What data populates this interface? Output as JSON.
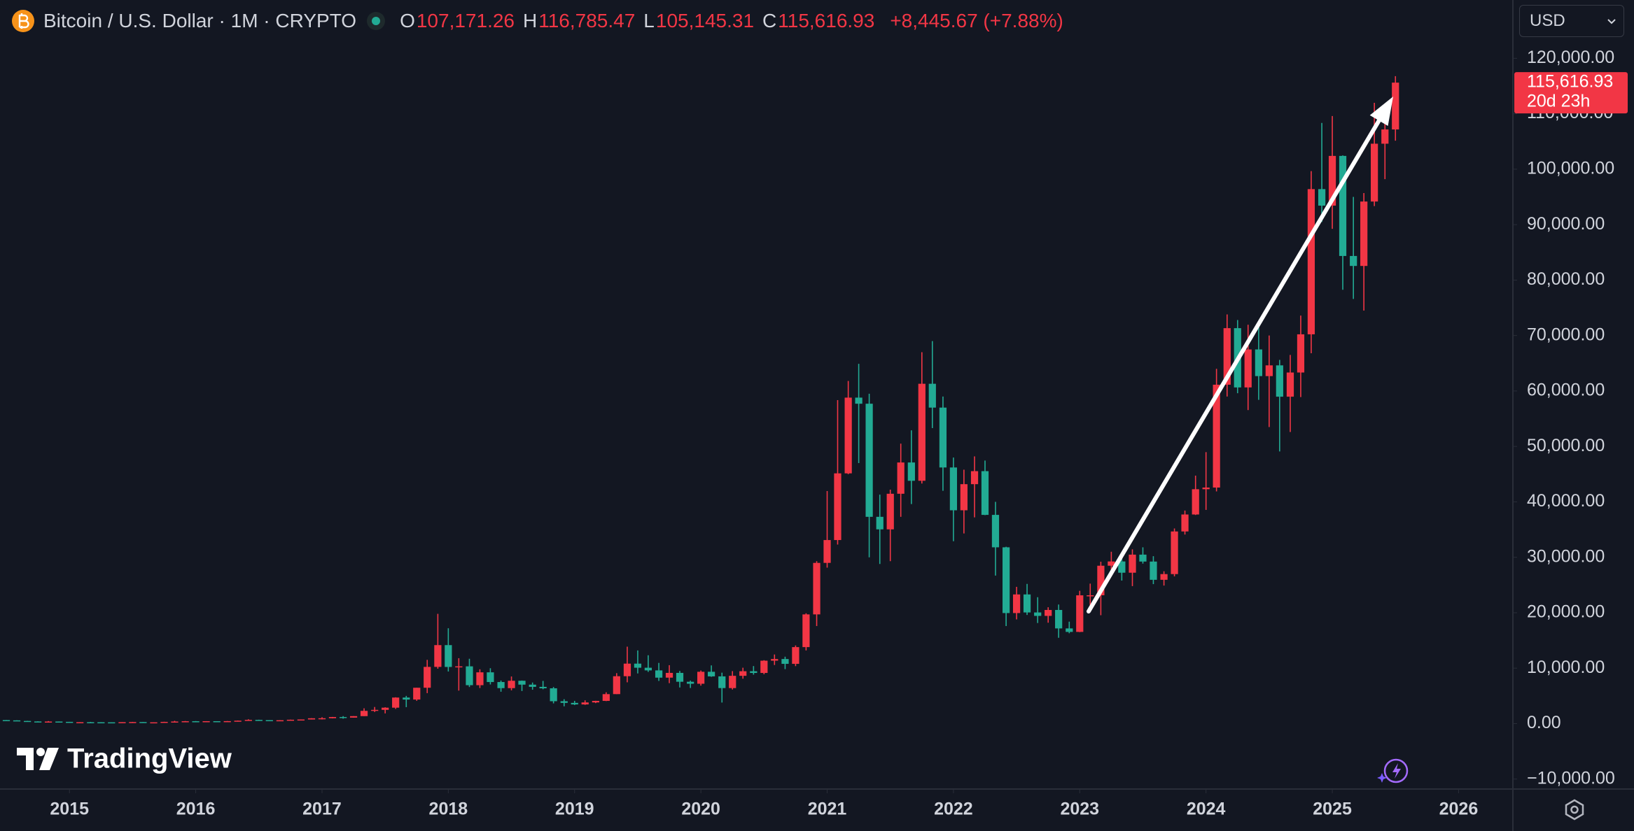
{
  "header": {
    "symbol": "Bitcoin / U.S. Dollar · 1M · CRYPTO",
    "ohlc": [
      {
        "label": "O",
        "value": "107,171.26"
      },
      {
        "label": "H",
        "value": "116,785.47"
      },
      {
        "label": "L",
        "value": "105,145.31"
      },
      {
        "label": "C",
        "value": "115,616.93"
      }
    ],
    "change": "+8,445.67 (+7.88%)"
  },
  "price_scale": {
    "currency": "USD",
    "last_price": "115,616.93",
    "countdown": "20d 23h"
  },
  "brand": "TradingView",
  "chart_data": {
    "type": "candlestick",
    "colors": {
      "up": "#f23645",
      "down": "#22ab94"
    },
    "xlim": [
      2014.45,
      2026.43
    ],
    "xticks": [
      2015,
      2016,
      2017,
      2018,
      2019,
      2020,
      2021,
      2022,
      2023,
      2024,
      2025,
      2026
    ],
    "ylim": [
      -11800,
      130520
    ],
    "yticks": [
      {
        "value": -10000,
        "label": "−10,000.00"
      },
      {
        "value": 0,
        "label": "0.00"
      },
      {
        "value": 10000,
        "label": "10,000.00"
      },
      {
        "value": 20000,
        "label": "20,000.00"
      },
      {
        "value": 30000,
        "label": "30,000.00"
      },
      {
        "value": 40000,
        "label": "40,000.00"
      },
      {
        "value": 50000,
        "label": "50,000.00"
      },
      {
        "value": 60000,
        "label": "60,000.00"
      },
      {
        "value": 70000,
        "label": "70,000.00"
      },
      {
        "value": 80000,
        "label": "80,000.00"
      },
      {
        "value": 90000,
        "label": "90,000.00"
      },
      {
        "value": 100000,
        "label": "100,000.00"
      },
      {
        "value": 110000,
        "label": "110,000.00"
      },
      {
        "value": 120000,
        "label": "120,000.00"
      }
    ],
    "x": [
      2014.5,
      2014.583,
      2014.667,
      2014.75,
      2014.833,
      2014.917,
      2015,
      2015.083,
      2015.167,
      2015.25,
      2015.333,
      2015.417,
      2015.5,
      2015.583,
      2015.667,
      2015.75,
      2015.833,
      2015.917,
      2016,
      2016.083,
      2016.167,
      2016.25,
      2016.333,
      2016.417,
      2016.5,
      2016.583,
      2016.667,
      2016.75,
      2016.833,
      2016.917,
      2017,
      2017.083,
      2017.167,
      2017.25,
      2017.333,
      2017.417,
      2017.5,
      2017.583,
      2017.667,
      2017.75,
      2017.833,
      2017.917,
      2018,
      2018.083,
      2018.167,
      2018.25,
      2018.333,
      2018.417,
      2018.5,
      2018.583,
      2018.667,
      2018.75,
      2018.833,
      2018.917,
      2019,
      2019.083,
      2019.167,
      2019.25,
      2019.333,
      2019.417,
      2019.5,
      2019.583,
      2019.667,
      2019.75,
      2019.833,
      2019.917,
      2020,
      2020.083,
      2020.167,
      2020.25,
      2020.333,
      2020.417,
      2020.5,
      2020.583,
      2020.667,
      2020.75,
      2020.833,
      2020.917,
      2021,
      2021.083,
      2021.167,
      2021.25,
      2021.333,
      2021.417,
      2021.5,
      2021.583,
      2021.667,
      2021.75,
      2021.833,
      2021.917,
      2022,
      2022.083,
      2022.167,
      2022.25,
      2022.333,
      2022.417,
      2022.5,
      2022.583,
      2022.667,
      2022.75,
      2022.833,
      2022.917,
      2023,
      2023.083,
      2023.167,
      2023.25,
      2023.333,
      2023.417,
      2023.5,
      2023.583,
      2023.667,
      2023.75,
      2023.833,
      2023.917,
      2024,
      2024.083,
      2024.167,
      2024.25,
      2024.333,
      2024.417,
      2024.5,
      2024.583,
      2024.667,
      2024.75,
      2024.833,
      2024.917,
      2025,
      2025.083,
      2025.167,
      2025.25,
      2025.333,
      2025.417,
      2025.5
    ],
    "open": [
      635,
      585,
      480,
      390,
      340,
      375,
      320,
      220,
      255,
      245,
      235,
      230,
      263,
      285,
      230,
      236,
      314,
      377,
      430,
      368,
      437,
      416,
      448,
      530,
      673,
      624,
      574,
      609,
      701,
      746,
      964,
      970,
      1190,
      1080,
      1350,
      2300,
      2480,
      2875,
      4700,
      4340,
      6470,
      10230,
      14160,
      10220,
      10330,
      6930,
      9250,
      7500,
      6400,
      7730,
      7030,
      6630,
      6370,
      4040,
      3740,
      3460,
      3820,
      4100,
      5320,
      8550,
      10820,
      10080,
      9600,
      8290,
      9150,
      7550,
      7190,
      9350,
      8520,
      6410,
      8620,
      9450,
      9140,
      11350,
      11650,
      10780,
      13800,
      19700,
      28990,
      33110,
      45140,
      58800,
      57700,
      37300,
      35040,
      41460,
      47100,
      43800,
      61300,
      57000,
      46200,
      38480,
      43190,
      45540,
      37650,
      31800,
      19940,
      23300,
      20050,
      19430,
      20500,
      17170,
      16540,
      23140,
      23150,
      28480,
      29250,
      27220,
      30480,
      29230,
      25940,
      26970,
      34660,
      37720,
      42280,
      42580,
      61130,
      71330,
      60640,
      67490,
      62680,
      64620,
      58970,
      63330,
      70220,
      96410,
      93430,
      102400,
      84350,
      82550,
      94170,
      104600,
      107171.26
    ],
    "high": [
      650,
      600,
      500,
      420,
      460,
      390,
      320,
      265,
      300,
      260,
      245,
      265,
      315,
      285,
      245,
      335,
      500,
      470,
      460,
      445,
      440,
      470,
      550,
      780,
      705,
      630,
      630,
      720,
      755,
      980,
      1150,
      1210,
      1350,
      1350,
      2760,
      3000,
      2950,
      4750,
      5000,
      6470,
      11500,
      19800,
      17200,
      11800,
      11700,
      9800,
      9990,
      7770,
      8500,
      7770,
      7410,
      7700,
      6600,
      4400,
      4100,
      4200,
      4120,
      5650,
      9100,
      13880,
      13200,
      12330,
      10950,
      10540,
      9500,
      7750,
      9580,
      10500,
      9190,
      9470,
      10080,
      10380,
      11440,
      12470,
      12070,
      14100,
      19900,
      29300,
      41950,
      58350,
      61800,
      64900,
      59500,
      41300,
      42200,
      50500,
      52900,
      67000,
      69000,
      59000,
      47990,
      45800,
      48200,
      47450,
      40000,
      31900,
      24670,
      25200,
      22800,
      20990,
      21480,
      18390,
      23950,
      25250,
      29200,
      31000,
      29830,
      31430,
      31800,
      30200,
      27480,
      35200,
      38430,
      44730,
      48970,
      64000,
      73800,
      72800,
      71950,
      71990,
      70000,
      65600,
      66500,
      73600,
      99650,
      108350,
      109590,
      102500,
      95000,
      95700,
      111980,
      110530,
      116785.47
    ],
    "low": [
      570,
      440,
      370,
      280,
      320,
      300,
      170,
      210,
      235,
      215,
      225,
      215,
      255,
      200,
      225,
      235,
      300,
      350,
      350,
      365,
      400,
      412,
      435,
      520,
      600,
      470,
      570,
      605,
      690,
      745,
      750,
      940,
      890,
      1070,
      1350,
      2100,
      1840,
      2650,
      2970,
      4110,
      5500,
      9900,
      9400,
      5950,
      6600,
      6420,
      7060,
      5750,
      6000,
      5880,
      6110,
      6200,
      3650,
      3120,
      3350,
      3380,
      3700,
      4060,
      5320,
      7450,
      9050,
      9330,
      7700,
      7300,
      6520,
      6430,
      6850,
      8440,
      3800,
      6150,
      8100,
      8830,
      8900,
      10570,
      9830,
      10370,
      13200,
      17600,
      28130,
      32300,
      45000,
      47000,
      30000,
      28800,
      29300,
      37300,
      39600,
      43300,
      53300,
      42000,
      32900,
      34300,
      37200,
      37600,
      26700,
      17600,
      18800,
      19600,
      18150,
      18200,
      15480,
      16300,
      16500,
      21400,
      19550,
      26940,
      25800,
      24800,
      28860,
      25160,
      24900,
      26560,
      34100,
      37630,
      38550,
      41880,
      59000,
      59600,
      56550,
      58400,
      53500,
      49100,
      52600,
      58900,
      66800,
      90500,
      89250,
      78250,
      76600,
      74500,
      93350,
      98200,
      105145.31
    ],
    "close": [
      585,
      480,
      390,
      340,
      375,
      320,
      220,
      255,
      245,
      235,
      230,
      263,
      285,
      230,
      236,
      314,
      377,
      430,
      368,
      437,
      416,
      448,
      530,
      673,
      624,
      574,
      609,
      701,
      746,
      964,
      970,
      1190,
      1080,
      1350,
      2300,
      2480,
      2875,
      4700,
      4340,
      6470,
      10230,
      14160,
      10220,
      10330,
      6930,
      9250,
      7500,
      6400,
      7730,
      7030,
      6630,
      6370,
      4040,
      3740,
      3460,
      3820,
      4100,
      5320,
      8550,
      10820,
      10080,
      9600,
      8290,
      9150,
      7550,
      7190,
      9350,
      8520,
      6410,
      8620,
      9450,
      9140,
      11350,
      11650,
      10780,
      13800,
      19700,
      28990,
      33110,
      45140,
      58800,
      57700,
      37300,
      35040,
      41460,
      47100,
      43800,
      61300,
      57000,
      46200,
      38480,
      43190,
      45540,
      37650,
      31800,
      19940,
      23300,
      20050,
      19430,
      20500,
      17170,
      16540,
      23140,
      23150,
      28480,
      29250,
      27220,
      30480,
      29230,
      25940,
      26970,
      34660,
      37720,
      42280,
      42580,
      61130,
      71330,
      60640,
      67490,
      62680,
      64620,
      58970,
      63330,
      70220,
      96410,
      93430,
      102400,
      84350,
      82550,
      94170,
      104600,
      107170,
      115616.93
    ]
  }
}
